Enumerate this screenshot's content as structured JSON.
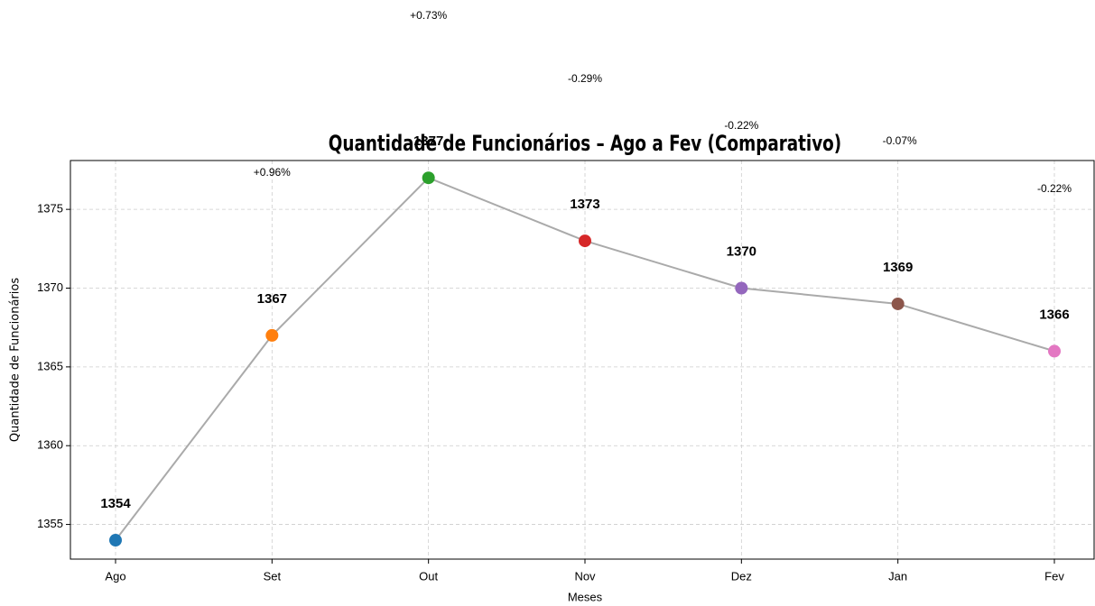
{
  "chart_data": {
    "type": "line",
    "title": "Quantidade de Funcionários – Ago a Fev (Comparativo)",
    "xlabel": "Meses",
    "ylabel": "Quantidade de Funcionários",
    "categories": [
      "Ago",
      "Set",
      "Out",
      "Nov",
      "Dez",
      "Jan",
      "Fev"
    ],
    "values": [
      1354,
      1367,
      1377,
      1373,
      1370,
      1369,
      1366
    ],
    "annotations": [
      null,
      "+0.96%",
      "+0.73%",
      "-0.29%",
      "-0.22%",
      "-0.07%",
      "-0.22%"
    ],
    "colors": [
      "#1f77b4",
      "#ff7f0e",
      "#2ca02c",
      "#d62728",
      "#9467bd",
      "#8c564b",
      "#e377c2"
    ],
    "line_color": "#aaaaaa",
    "ylim": [
      1352.8,
      1378.1
    ],
    "yticks": [
      1355,
      1360,
      1365,
      1370,
      1375
    ],
    "grid": true
  }
}
